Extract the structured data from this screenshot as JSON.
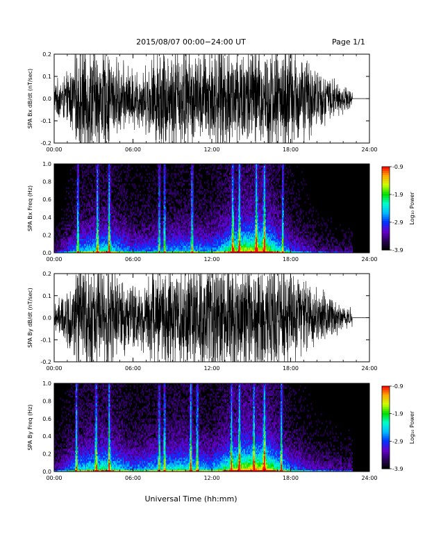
{
  "header": {
    "title": "2015/08/07  00:00−24:00 UT",
    "page": "Page 1/1"
  },
  "x_axis_label": "Universal Time (hh:mm)",
  "colorbar_label": "Log₁₀ Power",
  "colors": {
    "axes": "#000000",
    "signal": "#000000",
    "background": "#ffffff"
  },
  "chart_data": [
    {
      "id": "bx",
      "type": "line",
      "ylabel": "SPA Bx dB/dt (nT/sec)",
      "xlim": [
        0,
        24
      ],
      "ylim": [
        -0.2,
        0.2
      ],
      "x_ticks": [
        "00:00",
        "06:00",
        "12:00",
        "18:00",
        "24:00"
      ],
      "y_ticks": [
        -0.2,
        -0.1,
        0.0,
        0.1,
        0.2
      ],
      "data_end_hour": 22.7,
      "envelope_hours": [
        0,
        1,
        2,
        3,
        4,
        5,
        6,
        7,
        8,
        9,
        10,
        11,
        12,
        13,
        14,
        15,
        16,
        17,
        18,
        19,
        20,
        21,
        22,
        22.7
      ],
      "envelope_amplitude": [
        0.06,
        0.09,
        0.2,
        0.2,
        0.18,
        0.13,
        0.11,
        0.12,
        0.2,
        0.2,
        0.2,
        0.16,
        0.2,
        0.2,
        0.2,
        0.2,
        0.2,
        0.2,
        0.2,
        0.16,
        0.11,
        0.08,
        0.05,
        0.03
      ]
    },
    {
      "id": "bx-spec",
      "type": "heatmap",
      "ylabel": "SPA Bx Freq (Hz)",
      "xlim": [
        0,
        24
      ],
      "ylim": [
        0.0,
        1.0
      ],
      "x_ticks": [
        "00:00",
        "06:00",
        "12:00",
        "18:00",
        "24:00"
      ],
      "y_ticks": [
        0.0,
        0.2,
        0.4,
        0.6,
        0.8,
        1.0
      ],
      "data_end_hour": 22.7,
      "color_range": [
        -3.9,
        -0.9
      ],
      "colorbar_ticks": [
        -0.9,
        -1.9,
        -2.9,
        -3.9
      ],
      "colormap": [
        "#000000",
        "#2a005a",
        "#6600cc",
        "#0033ff",
        "#00bbff",
        "#00ffcc",
        "#00dd00",
        "#ccff00",
        "#ffaa00",
        "#ff0000"
      ],
      "bright_band_hours": [
        1.8,
        3.3,
        4.2,
        8.0,
        8.4,
        10.5,
        13.6,
        14.1,
        15.4,
        16.0,
        17.4
      ],
      "activity_hours": [
        0,
        2,
        4,
        6,
        8,
        10,
        12,
        14,
        16,
        18,
        20,
        22
      ],
      "activity_level": [
        0.15,
        0.45,
        0.55,
        0.35,
        0.4,
        0.45,
        0.4,
        0.7,
        0.75,
        0.35,
        0.2,
        0.15
      ]
    },
    {
      "id": "by",
      "type": "line",
      "ylabel": "SPA By dB/dt (nT/sec)",
      "xlim": [
        0,
        24
      ],
      "ylim": [
        -0.2,
        0.2
      ],
      "x_ticks": [
        "00:00",
        "06:00",
        "12:00",
        "18:00",
        "24:00"
      ],
      "y_ticks": [
        -0.2,
        -0.1,
        0.0,
        0.1,
        0.2
      ],
      "data_end_hour": 22.7,
      "envelope_hours": [
        0,
        1,
        2,
        3,
        4,
        5,
        6,
        7,
        8,
        9,
        10,
        11,
        12,
        13,
        14,
        15,
        16,
        17,
        18,
        19,
        20,
        21,
        22,
        22.7
      ],
      "envelope_amplitude": [
        0.05,
        0.1,
        0.2,
        0.2,
        0.19,
        0.15,
        0.13,
        0.14,
        0.2,
        0.2,
        0.2,
        0.17,
        0.2,
        0.2,
        0.2,
        0.2,
        0.2,
        0.2,
        0.19,
        0.15,
        0.11,
        0.07,
        0.05,
        0.03
      ]
    },
    {
      "id": "by-spec",
      "type": "heatmap",
      "ylabel": "SPA By Freq (Hz)",
      "xlim": [
        0,
        24
      ],
      "ylim": [
        0.0,
        1.0
      ],
      "x_ticks": [
        "00:00",
        "06:00",
        "12:00",
        "18:00",
        "24:00"
      ],
      "y_ticks": [
        0.0,
        0.2,
        0.4,
        0.6,
        0.8,
        1.0
      ],
      "data_end_hour": 22.7,
      "color_range": [
        -3.9,
        -0.9
      ],
      "colorbar_ticks": [
        -0.9,
        -1.9,
        -2.9,
        -3.9
      ],
      "colormap": [
        "#000000",
        "#2a005a",
        "#6600cc",
        "#0033ff",
        "#00bbff",
        "#00ffcc",
        "#00dd00",
        "#ccff00",
        "#ffaa00",
        "#ff0000"
      ],
      "bright_band_hours": [
        1.7,
        3.2,
        4.2,
        8.0,
        8.4,
        10.4,
        10.9,
        13.5,
        14.1,
        15.2,
        16.0,
        17.3
      ],
      "activity_hours": [
        0,
        2,
        4,
        6,
        8,
        10,
        12,
        14,
        16,
        18,
        20,
        22
      ],
      "activity_level": [
        0.2,
        0.5,
        0.6,
        0.4,
        0.5,
        0.55,
        0.45,
        0.75,
        0.8,
        0.4,
        0.25,
        0.2
      ]
    }
  ]
}
